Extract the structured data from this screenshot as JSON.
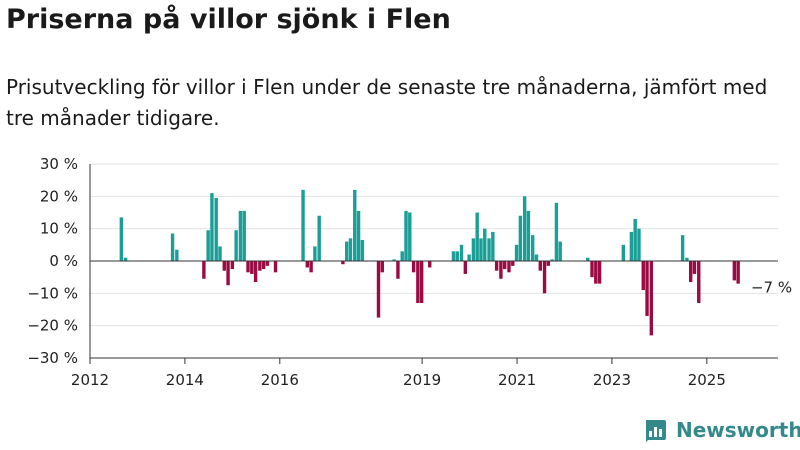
{
  "title": "Priserna på villor sjönk i Flen",
  "subtitle": "Prisutveckling för villor i Flen under de senaste tre månaderna, jämfört med tre månader tidigare.",
  "brand": {
    "name": "Newsworthy",
    "icon": "newsworthy-logo-icon",
    "color": "#34898b"
  },
  "chart_data": {
    "type": "bar",
    "title": "Priserna på villor sjönk i Flen",
    "subtitle": "Prisutveckling för villor i Flen under de senaste tre månaderna, jämfört med tre månader tidigare.",
    "xlabel": "",
    "ylabel": "",
    "x_ticks": [
      "2012",
      "2014",
      "2016",
      "2019",
      "2021",
      "2023",
      "2025"
    ],
    "y_ticks": [
      "30 %",
      "20 %",
      "10 %",
      "0 %",
      "−10 %",
      "−20 %",
      "−30 %"
    ],
    "ylim": [
      -30,
      30
    ],
    "grid": true,
    "colors": {
      "positive": "#1a9e96",
      "negative": "#9b0b43"
    },
    "annotation": {
      "text": "−7 %",
      "x": 2025.72,
      "y": -7
    },
    "series": [
      {
        "name": "",
        "x": [
          2012.66,
          2012.75,
          2013.74,
          2013.83,
          2014.4,
          2014.49,
          2014.57,
          2014.66,
          2014.74,
          2014.83,
          2014.91,
          2015.0,
          2015.08,
          2015.17,
          2015.25,
          2015.33,
          2015.41,
          2015.49,
          2015.58,
          2015.66,
          2015.74,
          2015.91,
          2016.49,
          2016.58,
          2016.66,
          2016.74,
          2016.83,
          2017.33,
          2017.41,
          2017.49,
          2017.58,
          2017.66,
          2017.74,
          2017.83,
          2018.08,
          2018.16,
          2018.41,
          2018.49,
          2018.58,
          2018.66,
          2018.74,
          2018.82,
          2018.91,
          2018.99,
          2019.16,
          2019.66,
          2019.74,
          2019.83,
          2019.91,
          2019.99,
          2020.08,
          2020.16,
          2020.24,
          2020.32,
          2020.41,
          2020.49,
          2020.57,
          2020.66,
          2020.74,
          2020.83,
          2020.91,
          2020.99,
          2021.07,
          2021.16,
          2021.24,
          2021.33,
          2021.41,
          2021.49,
          2021.58,
          2021.66,
          2021.74,
          2021.83,
          2021.91,
          2022.49,
          2022.58,
          2022.66,
          2022.74,
          2023.24,
          2023.41,
          2023.49,
          2023.57,
          2023.66,
          2023.74,
          2023.83,
          2024.49,
          2024.58,
          2024.66,
          2024.74,
          2024.83,
          2025.58,
          2025.66
        ],
        "values": [
          13.5,
          1,
          8.5,
          3.5,
          -5.5,
          9.5,
          21,
          19.5,
          4.5,
          -3,
          -7.5,
          -2.5,
          9.5,
          15.5,
          15.5,
          -3.5,
          -4,
          -6.5,
          -3,
          -2.5,
          -1.5,
          -3.5,
          22,
          -2,
          -3.5,
          4.5,
          14,
          -1,
          6,
          7,
          22,
          15.5,
          6.5,
          0,
          -17.5,
          -3.5,
          0.5,
          -5.5,
          3,
          15.5,
          15,
          -3.5,
          -13,
          -13,
          -2,
          3,
          3,
          5,
          -4,
          2,
          7,
          15,
          7,
          10,
          7,
          9,
          -3,
          -5.5,
          -2.5,
          -3.5,
          -1.5,
          5,
          14,
          20,
          15.5,
          8,
          2,
          -3,
          -10,
          -1.5,
          0.5,
          18,
          6,
          1,
          -5,
          -7,
          -7,
          5,
          9,
          13,
          10,
          -9,
          -17,
          -23,
          8,
          1,
          -6.5,
          -4,
          -13,
          -6,
          -7
        ]
      }
    ]
  }
}
